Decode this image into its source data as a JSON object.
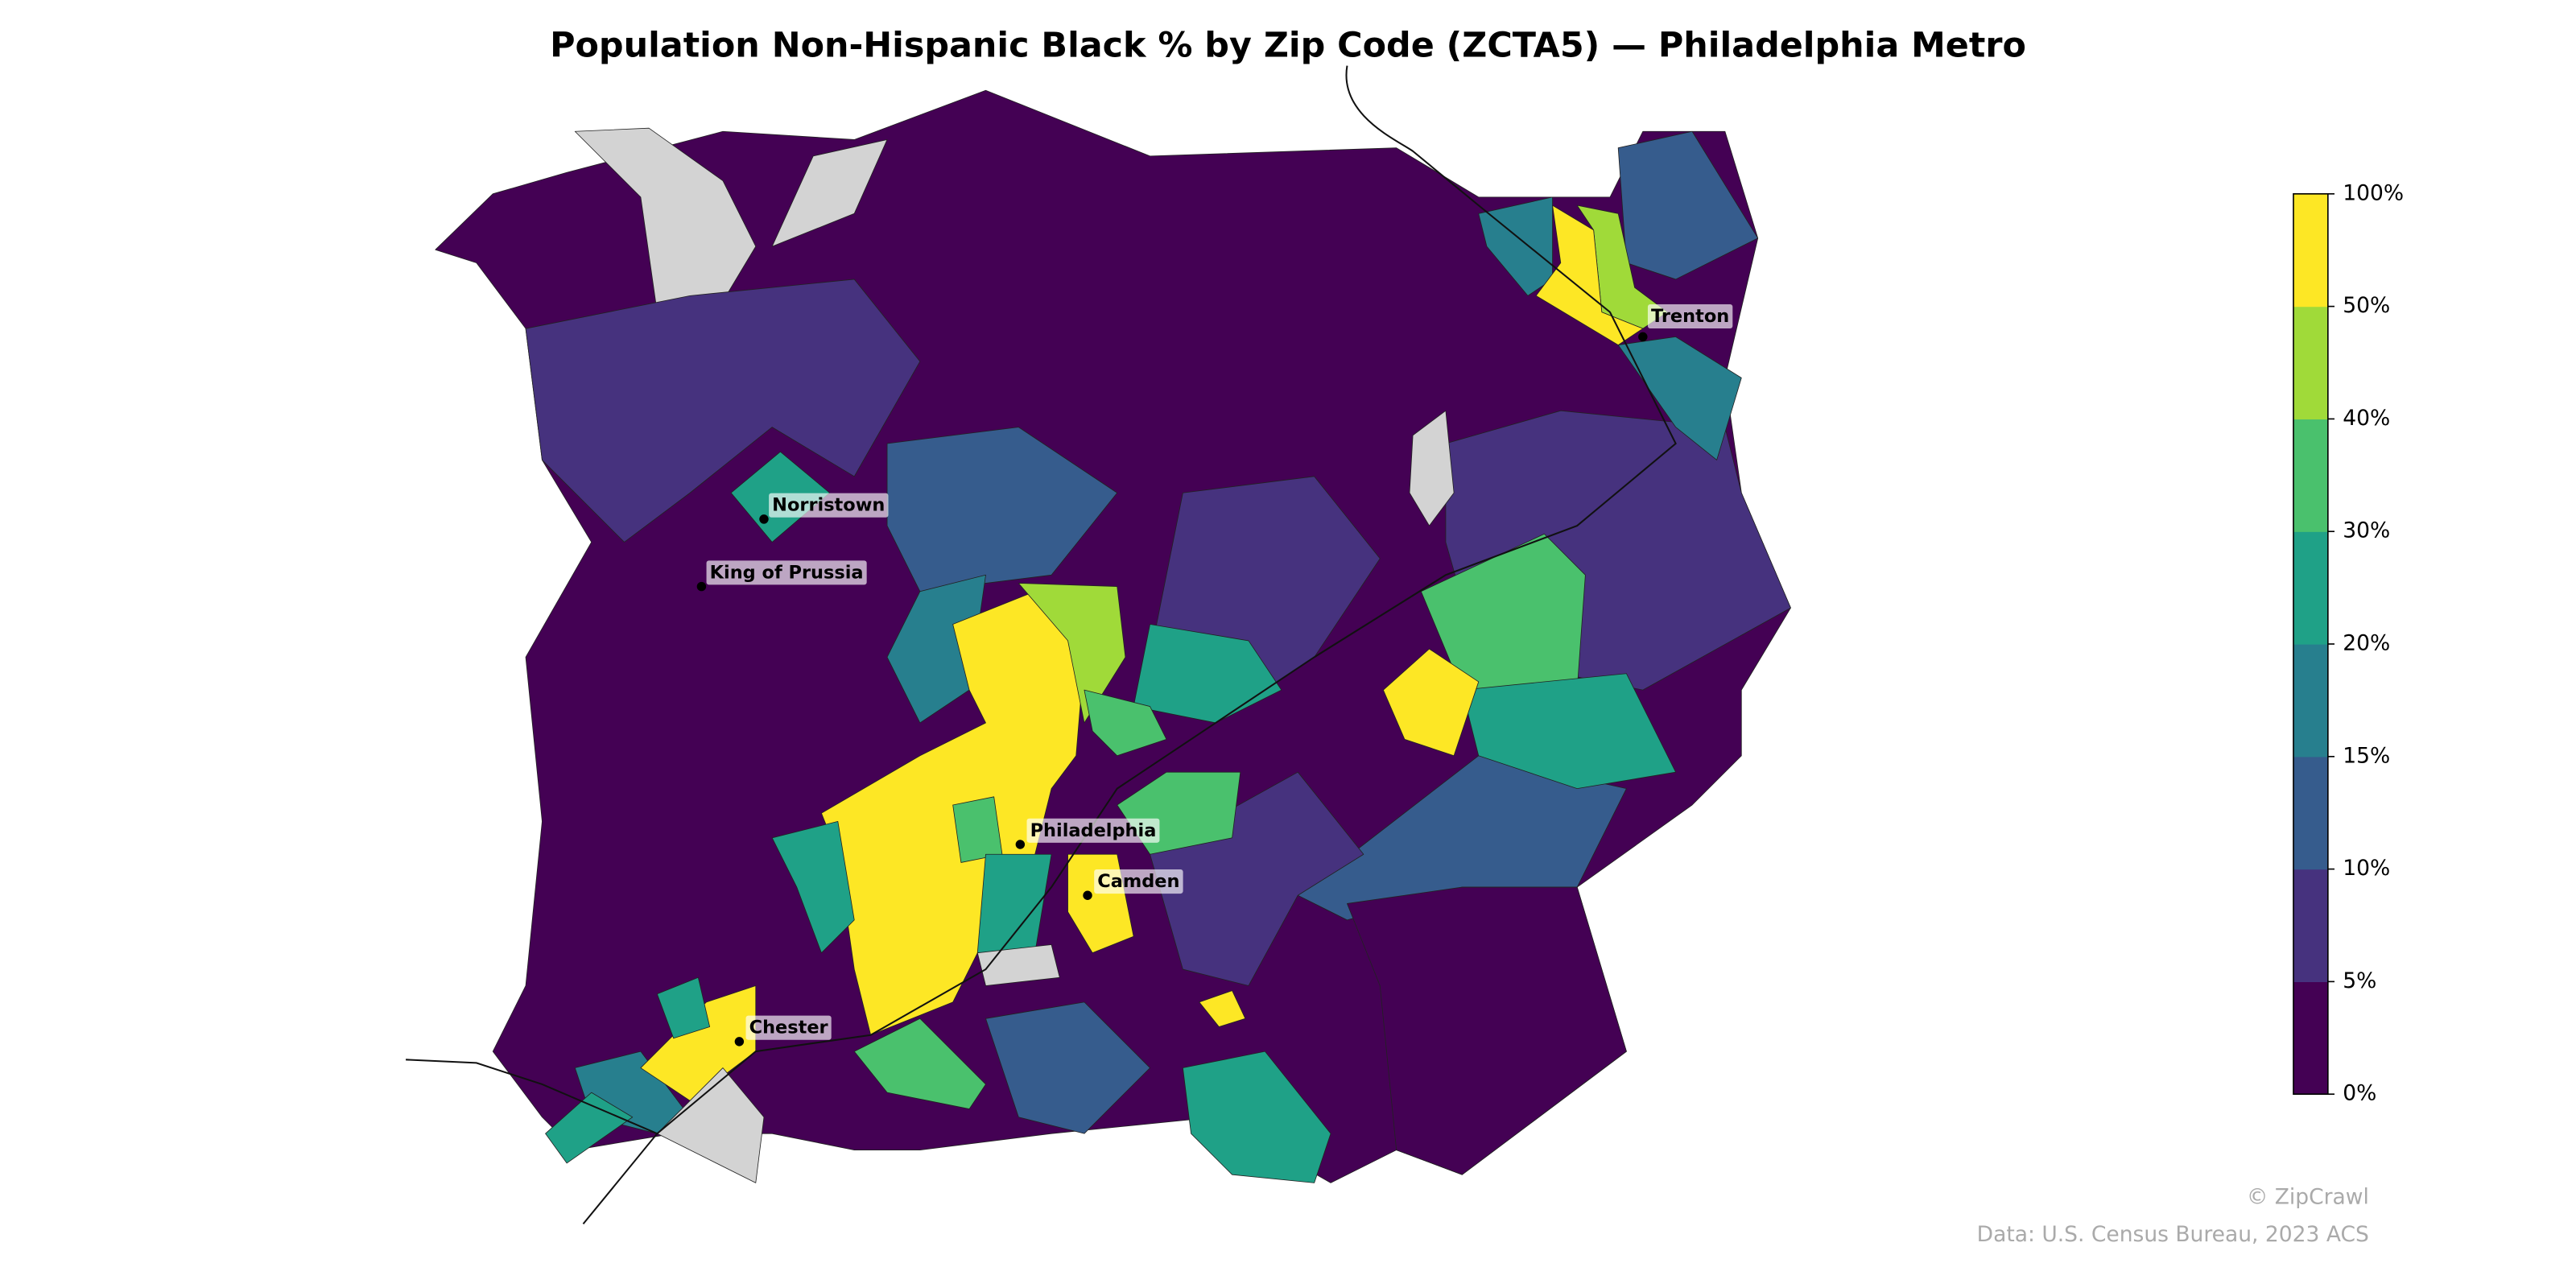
{
  "map": {
    "title": "Population Non-Hispanic Black % by Zip Code (ZCTA5) — Philadelphia Metro",
    "cities": [
      {
        "name": "Trenton"
      },
      {
        "name": "Norristown"
      },
      {
        "name": "King of Prussia"
      },
      {
        "name": "Philadelphia"
      },
      {
        "name": "Camden"
      },
      {
        "name": "Chester"
      }
    ],
    "colorbar": {
      "colors": [
        "#440154",
        "#46327e",
        "#365c8d",
        "#277f8e",
        "#1fa187",
        "#4ac16d",
        "#a0da39",
        "#fde725"
      ],
      "no_data_color": "#d3d3d3",
      "ticks": [
        {
          "value": 0,
          "label": "0%"
        },
        {
          "value": 5,
          "label": "5%"
        },
        {
          "value": 10,
          "label": "10%"
        },
        {
          "value": 15,
          "label": "15%"
        },
        {
          "value": 20,
          "label": "20%"
        },
        {
          "value": 30,
          "label": "30%"
        },
        {
          "value": 40,
          "label": "40%"
        },
        {
          "value": 50,
          "label": "50%"
        },
        {
          "value": 100,
          "label": "100%"
        }
      ]
    },
    "credit": "© ZipCrawl",
    "source": "Data: U.S. Census Bureau, 2023 ACS"
  }
}
